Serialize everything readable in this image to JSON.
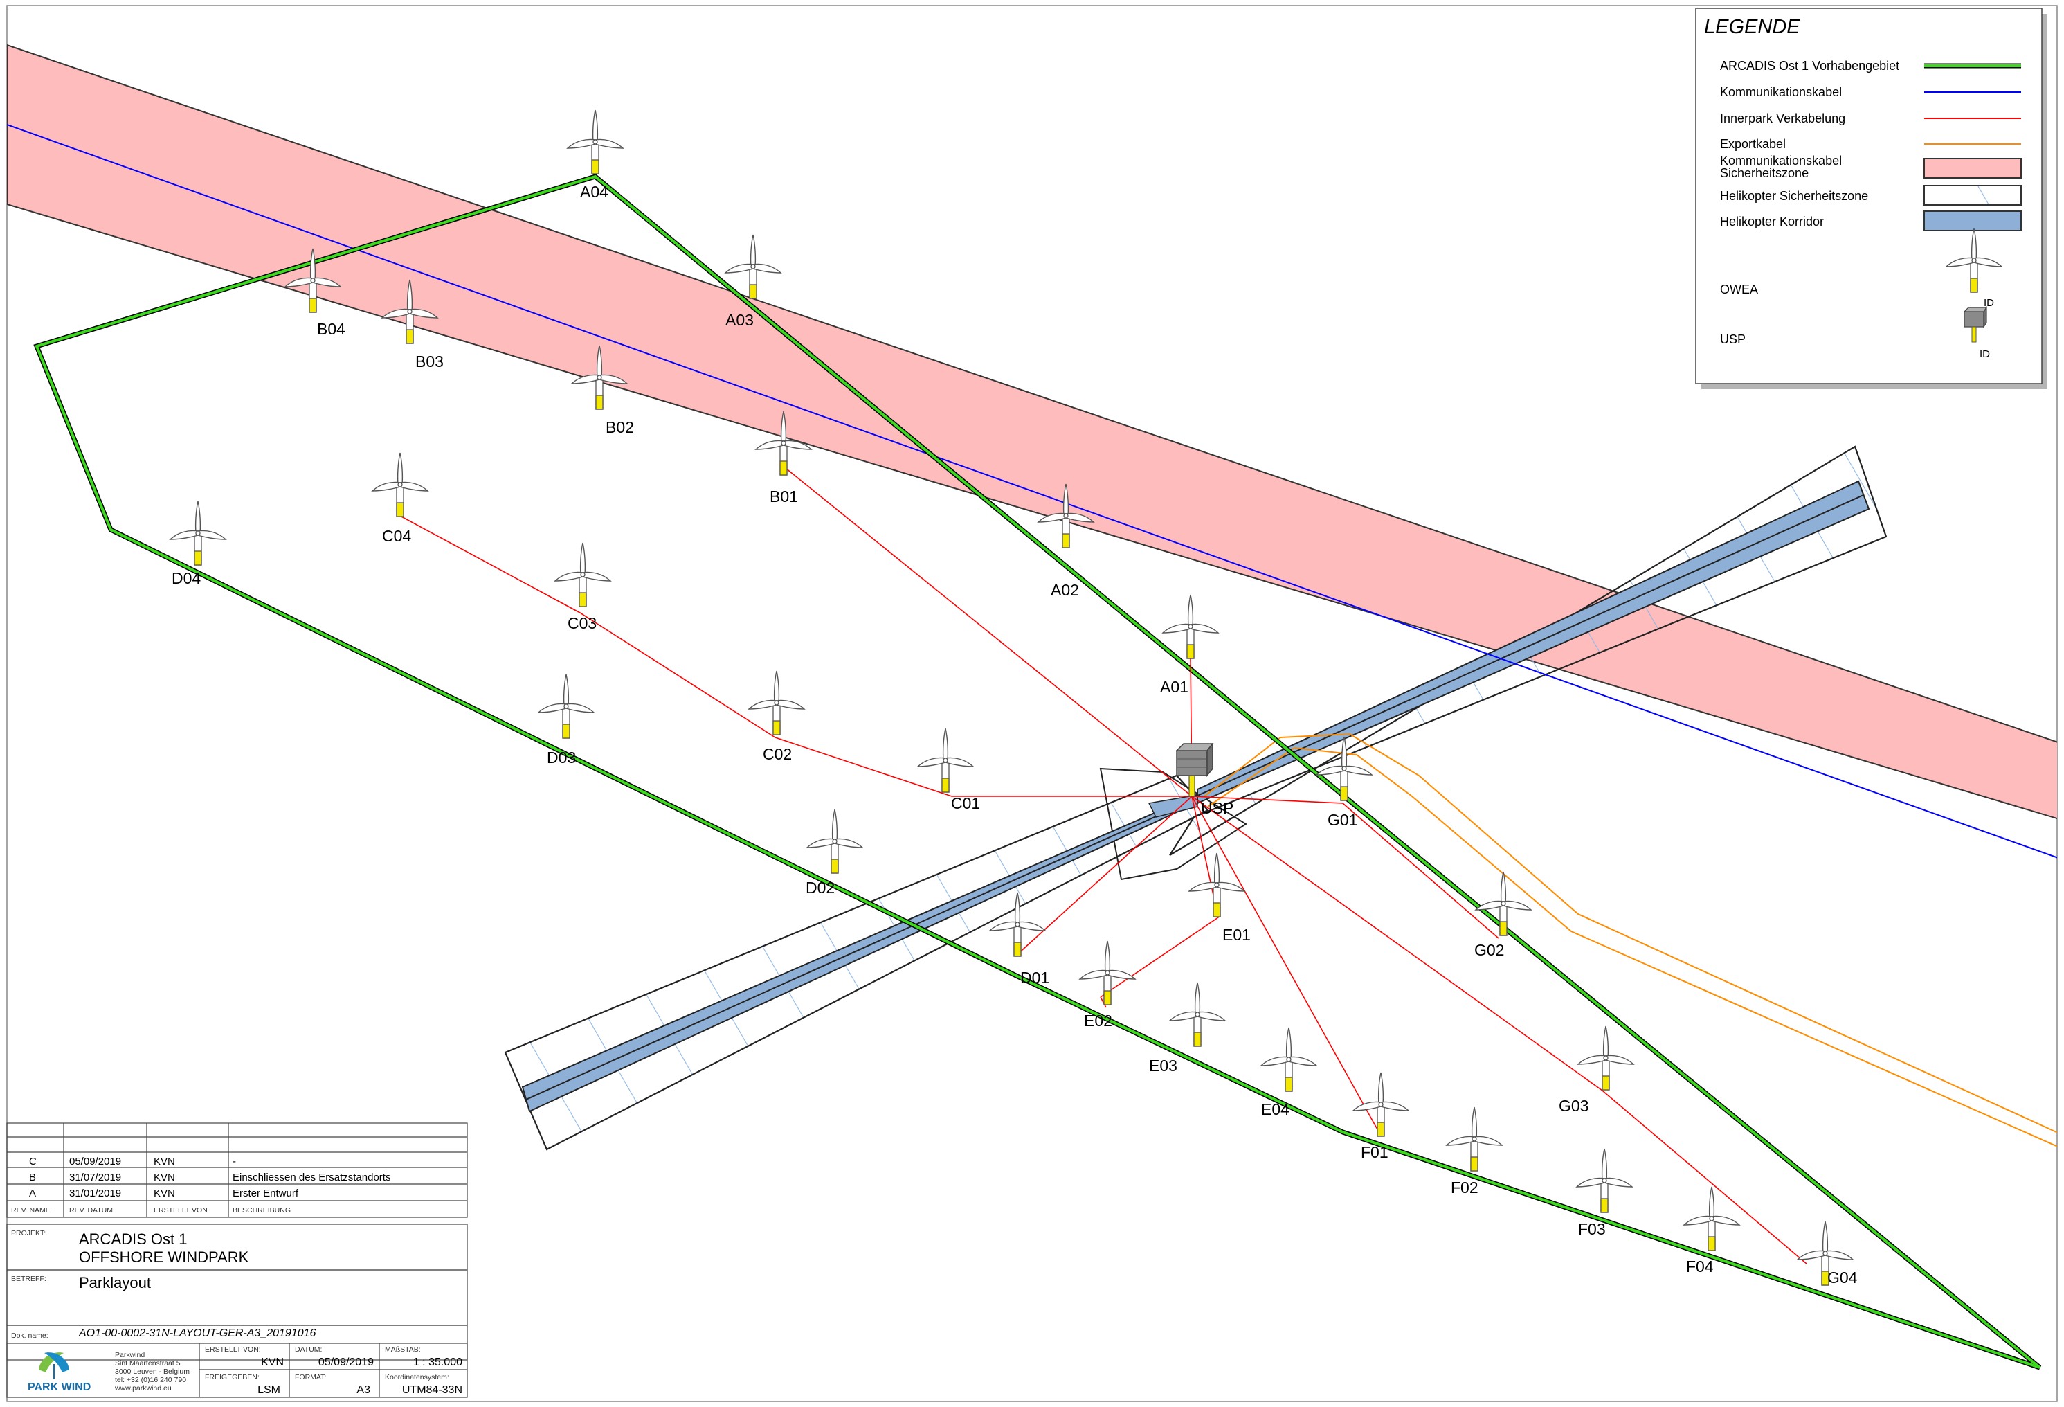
{
  "legend": {
    "title": "LEGENDE",
    "items": [
      {
        "label": "ARCADIS Ost 1 Vorhabengebiet",
        "type": "area-line"
      },
      {
        "label": "Kommunikationskabel",
        "type": "blue-line"
      },
      {
        "label": "Innerpark Verkabelung",
        "type": "red-line"
      },
      {
        "label": "Exportkabel",
        "type": "orange-line"
      },
      {
        "label": "Kommunikationskabel Sicherheitszone",
        "type": "pink-box"
      },
      {
        "label": "Helikopter Sicherheitszone",
        "type": "hatch-box"
      },
      {
        "label": "Helikopter Korridor",
        "type": "blue-box"
      },
      {
        "label": "OWEA",
        "type": "turbine"
      },
      {
        "label": "USP",
        "type": "substation"
      }
    ],
    "id_label": "ID"
  },
  "colors": {
    "area": "#3cd91e",
    "comm_cable": "#0000ff",
    "innerpark": "#ff0000",
    "export": "#ff8c00",
    "comm_zone": "#ffbcbc",
    "heli_corridor": "#8fb0d6",
    "hatch": "#8fb8e6",
    "turbine_foundation": "#f5e800"
  },
  "turbines": [
    "A01",
    "A02",
    "A03",
    "A04",
    "B01",
    "B02",
    "B03",
    "B04",
    "C01",
    "C02",
    "C03",
    "C04",
    "D01",
    "D02",
    "D03",
    "D04",
    "E01",
    "E02",
    "E03",
    "E04",
    "F01",
    "F02",
    "F03",
    "F04",
    "G01",
    "G02",
    "G03",
    "G04"
  ],
  "substation": {
    "label": "USP"
  },
  "revisions": [
    {
      "rev": "C",
      "date": "05/09/2019",
      "by": "KVN",
      "desc": "-"
    },
    {
      "rev": "B",
      "date": "31/07/2019",
      "by": "KVN",
      "desc": "Einschliessen des Ersatzstandorts"
    },
    {
      "rev": "A",
      "date": "31/01/2019",
      "by": "KVN",
      "desc": "Erster Entwurf"
    }
  ],
  "revision_headers": {
    "rev": "REV. NAME",
    "date": "REV. DATUM",
    "by": "ERSTELLT VON",
    "desc": "BESCHREIBUNG"
  },
  "title_block": {
    "project_label": "PROJEKT:",
    "project_line1": "ARCADIS Ost 1",
    "project_line2": "OFFSHORE WINDPARK",
    "subject_label": "BETREFF:",
    "subject": "Parklayout",
    "doc_label": "Dok. name:",
    "doc_name": "AO1-00-0002-31N-LAYOUT-GER-A3_20191016",
    "company_name": "Parkwind",
    "company_street": "Sint Maartenstraat 5",
    "company_city": "3000 Leuven - Belgium",
    "company_tel": "tel: +32 (0)16 240 790",
    "company_web": "www.parkwind.eu",
    "logo_text": "PARK WIND",
    "created_label": "ERSTELLT VON:",
    "created": "KVN",
    "date_label": "DATUM:",
    "date": "05/09/2019",
    "scale_label": "MAßSTAB:",
    "scale": "1 : 35.000",
    "released_label": "FREIGEGEBEN:",
    "released": "LSM",
    "format_label": "FORMAT:",
    "format": "A3",
    "crs_label": "Koordinatensystem:",
    "crs": "UTM84-33N"
  }
}
